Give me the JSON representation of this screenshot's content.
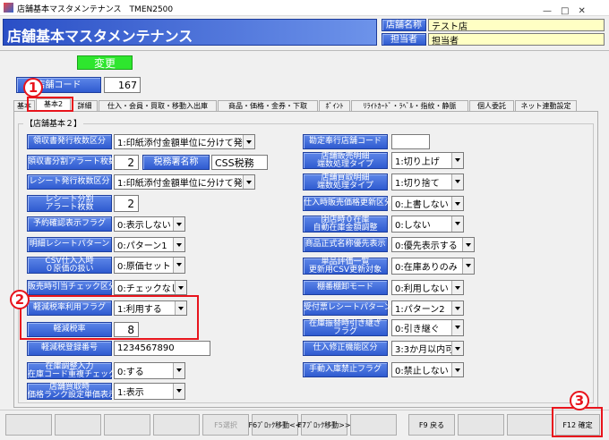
{
  "window": {
    "title": "店舗基本マスタメンテナンス　TMEN2500"
  },
  "header": {
    "title": "店舗基本マスタメンテナンス",
    "store_name_label": "店舗名称",
    "store_name": "テスト店",
    "staff_label": "担当者",
    "staff": "担当者"
  },
  "mode_button": "変更",
  "store_code": {
    "label": "店舗コード",
    "value": "167"
  },
  "annotations": [
    "1",
    "2",
    "3"
  ],
  "tabs": [
    "基本",
    "基本2",
    "詳細",
    "仕入・会員・買取・移動入出庫",
    "商品・価格・金券・下取",
    "ﾎﾟｲﾝﾄ",
    "ﾘﾗｲﾄｶｰﾄﾞ・ﾗﾍﾞﾙ・指紋・静脈",
    "個人委託",
    "ネット連動設定"
  ],
  "active_tab": 1,
  "group_title": "【店舗基本２】",
  "left_fields": [
    {
      "label": [
        "領収書発行枚数区分"
      ],
      "value": "1:印紙添付金額単位に分けて発行",
      "input": "select"
    },
    {
      "label": [
        "領収書分割アラート枚数"
      ],
      "value": "2",
      "input": "text",
      "extra": {
        "label": "税務署名称",
        "value": "CSS税務"
      }
    },
    {
      "label": [
        "レシート発行枚数区分"
      ],
      "value": "1:印紙添付金額単位に分けて発行",
      "input": "select"
    },
    {
      "label": [
        "レシート分割",
        "アラート枚数"
      ],
      "value": "2",
      "input": "text"
    },
    {
      "label": [
        "予約確認表示フラグ"
      ],
      "value": "0:表示しない",
      "input": "select"
    },
    {
      "label": [
        "明細レシートパターン"
      ],
      "value": "0:パターン1",
      "input": "select"
    },
    {
      "label": [
        "CSV仕入入時",
        "０原価の扱い"
      ],
      "value": "0:原価セット",
      "input": "select"
    },
    {
      "label": [
        "販売時引当チェック区分"
      ],
      "value": "0:チェックなし",
      "input": "select"
    },
    {
      "label": [
        "軽減税率利用フラグ"
      ],
      "value": "1:利用する",
      "input": "select"
    },
    {
      "label": [
        "軽減税率"
      ],
      "value": "8",
      "input": "text"
    },
    {
      "label": [
        "軽減税登録番号"
      ],
      "value": "1234567890",
      "input": "text"
    },
    {
      "label": [
        "在庫調整入力",
        "在庫コード重複チェック"
      ],
      "value": "0:する",
      "input": "select"
    },
    {
      "label": [
        "店舗買取時",
        "価格ランク設定単価表示"
      ],
      "value": "1:表示",
      "input": "select"
    }
  ],
  "right_fields": [
    {
      "label": [
        "勘定奉行店舗コード"
      ],
      "input": "text"
    },
    {
      "label": [
        "店舗販売明細",
        "端数処理タイプ"
      ],
      "value": "1:切り上げ",
      "input": "select"
    },
    {
      "label": [
        "店舗買取明細",
        "端数処理タイプ"
      ],
      "value": "1:切り捨て",
      "input": "select"
    },
    {
      "label": [
        "仕入時販売価格更新区分"
      ],
      "value": "0:上書しない",
      "input": "select"
    },
    {
      "label": [
        "閉店時０在庫",
        "自動在庫金額調整"
      ],
      "value": "0:しない",
      "input": "select"
    },
    {
      "label": [
        "商品正式名称優先表示"
      ],
      "value": "0:優先表示する",
      "input": "select"
    },
    {
      "label": [
        "単品評価一覧",
        "更新用CSV更新対象"
      ],
      "value": "0:在庫ありのみ",
      "input": "select"
    },
    {
      "label": [
        "棚番棚卸モード"
      ],
      "value": "0:利用しない",
      "input": "select"
    },
    {
      "label": [
        "受付票レシートパターン"
      ],
      "value": "1:パターン2",
      "input": "select"
    },
    {
      "label": [
        "在庫振替時引き継ぎ",
        "フラグ"
      ],
      "value": "0:引き継ぐ",
      "input": "select"
    },
    {
      "label": [
        "仕入修正機能区分"
      ],
      "value": "3:3か月以内可",
      "input": "select"
    },
    {
      "label": [
        "手動入庫禁止フラグ"
      ],
      "value": "0:禁止しない",
      "input": "select"
    }
  ],
  "function_keys": [
    "F5選択",
    "F6ﾌﾞﾛｯｸ移動<<",
    "F7ﾌﾞﾛｯｸ移動>>",
    "F9 戻る",
    "F12 確定"
  ]
}
